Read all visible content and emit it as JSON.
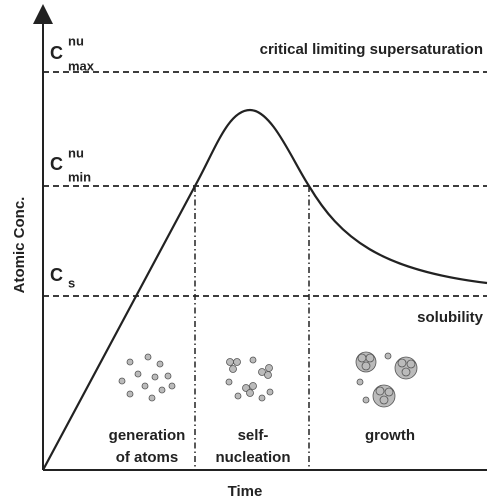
{
  "levels": [
    {
      "symbol": "C",
      "sup": "nu",
      "sub": "max",
      "label": "critical limiting supersaturation"
    },
    {
      "symbol": "C",
      "sup": "nu",
      "sub": "min"
    },
    {
      "symbol": "C",
      "sub": "s",
      "label": "solubility"
    }
  ],
  "axes": {
    "y": "Atomic Conc.",
    "x": "Time"
  },
  "stages": [
    {
      "lines": [
        "generation",
        "of atoms"
      ]
    },
    {
      "lines": [
        "self-",
        "nucleation"
      ]
    },
    {
      "lines": [
        "growth"
      ]
    }
  ]
}
